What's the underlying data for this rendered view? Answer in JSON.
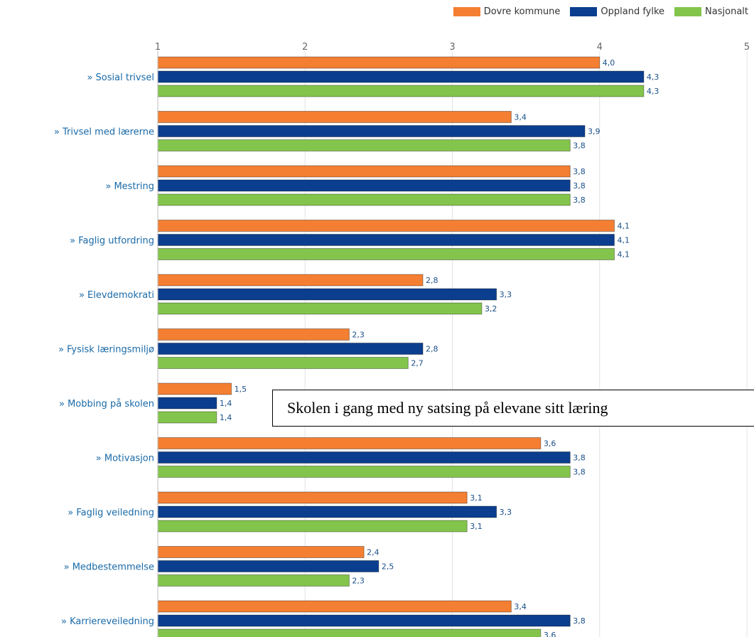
{
  "legend": {
    "items": [
      {
        "label": "Dovre kommune",
        "color": "#f47f32"
      },
      {
        "label": "Oppland fylke",
        "color": "#0b3e8e"
      },
      {
        "label": "Nasjonalt",
        "color": "#83c54c"
      }
    ]
  },
  "note": {
    "text": "Skolen i gang med ny satsing på elevane sitt læring"
  },
  "chart_data": {
    "type": "bar",
    "orientation": "horizontal",
    "xlim": [
      1,
      5
    ],
    "ticks": [
      "1",
      "2",
      "3",
      "4",
      "5"
    ],
    "grid": true,
    "legend_position": "top-right",
    "categories": [
      "» Sosial trivsel",
      "» Trivsel med lærerne",
      "» Mestring",
      "» Faglig utfordring",
      "» Elevdemokrati",
      "» Fysisk læringsmiljø",
      "» Mobbing på skolen",
      "» Motivasjon",
      "» Faglig veiledning",
      "» Medbestemmelse",
      "» Karriereveiledning"
    ],
    "series": [
      {
        "name": "Dovre kommune",
        "color": "#f47f32",
        "values": [
          4.0,
          3.4,
          3.8,
          4.1,
          2.8,
          2.3,
          1.5,
          3.6,
          3.1,
          2.4,
          3.4
        ],
        "labels": [
          "4,0",
          "3,4",
          "3,8",
          "4,1",
          "2,8",
          "2,3",
          "1,5",
          "3,6",
          "3,1",
          "2,4",
          "3,4"
        ]
      },
      {
        "name": "Oppland fylke",
        "color": "#0b3e8e",
        "values": [
          4.3,
          3.9,
          3.8,
          4.1,
          3.3,
          2.8,
          1.4,
          3.8,
          3.3,
          2.5,
          3.8
        ],
        "labels": [
          "4,3",
          "3,9",
          "3,8",
          "4,1",
          "3,3",
          "2,8",
          "1,4",
          "3,8",
          "3,3",
          "2,5",
          "3,8"
        ]
      },
      {
        "name": "Nasjonalt",
        "color": "#83c54c",
        "values": [
          4.3,
          3.8,
          3.8,
          4.1,
          3.2,
          2.7,
          1.4,
          3.8,
          3.1,
          2.3,
          3.6
        ],
        "labels": [
          "4,3",
          "3,8",
          "3,8",
          "4,1",
          "3,2",
          "2,7",
          "1,4",
          "3,8",
          "3,1",
          "2,3",
          "3,6"
        ]
      }
    ]
  }
}
